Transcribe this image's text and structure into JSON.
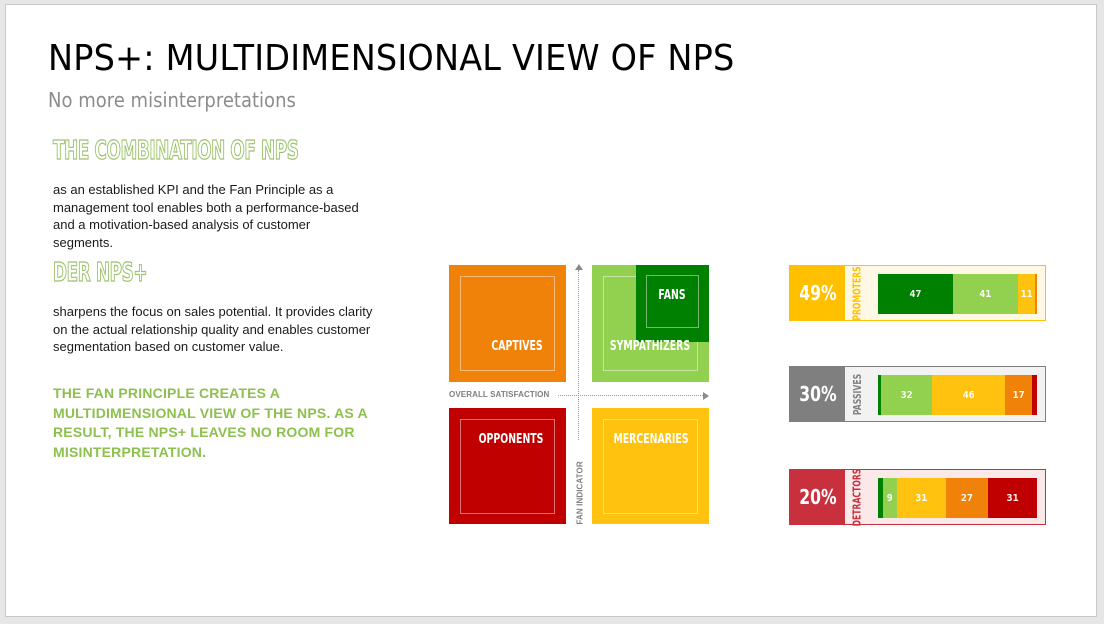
{
  "slide": {
    "title": "NPS+: MULTIDIMENSIONAL VIEW OF NPS",
    "subtitle": "No more misinterpretations"
  },
  "left_panel": {
    "section1": {
      "heading": "THE COMBINATION OF NPS",
      "body": "as an established KPI and the Fan Principle as a management tool enables both a performance-based and a motivation-based analysis of customer segments."
    },
    "section2": {
      "heading": "DER NPS+",
      "body": "sharpens the focus on sales potential. It provides clarity on the actual relationship quality and enables customer segmentation based on customer value."
    },
    "callout": "THE FAN PRINCIPLE CREATES A MULTIDIMENSIONAL VIEW OF THE NPS. AS A RESULT, THE NPS+ LEAVES NO ROOM FOR MISINTERPRETATION."
  },
  "matrix": {
    "x_axis_label": "OVERALL SATISFACTION",
    "y_axis_label": "FAN INDICATOR",
    "quadrants": {
      "captives": {
        "label": "CAPTIVES",
        "color": "#f0820a"
      },
      "sympathizers": {
        "label": "SYMPATHIZERS",
        "color": "#92d050"
      },
      "fans": {
        "label": "FANS",
        "color": "#008000"
      },
      "opponents": {
        "label": "OPPONENTS",
        "color": "#c00000"
      },
      "mercenaries": {
        "label": "MERCENARIES",
        "color": "#ffc20e"
      }
    }
  },
  "chart_data": {
    "type": "bar",
    "title": "NPS+ segment composition by NPS group",
    "orientation": "horizontal-stacked",
    "segment_colors": {
      "fans": "#008000",
      "sympathizers": "#92d050",
      "mercenaries": "#ffc20e",
      "captives": "#f0820a",
      "opponents": "#c00000"
    },
    "rows": [
      {
        "name": "PROMOTERS",
        "share": "49%",
        "accent": "#ffc000",
        "background": "#fff8e5",
        "segments": [
          {
            "key": "fans",
            "value": 47,
            "label": "47"
          },
          {
            "key": "sympathizers",
            "value": 41,
            "label": "41"
          },
          {
            "key": "mercenaries",
            "value": 11,
            "label": "11"
          },
          {
            "key": "captives",
            "value": 1,
            "label": ""
          }
        ]
      },
      {
        "name": "PASSIVES",
        "share": "30%",
        "accent": "#7f7f7f",
        "background": "#f2f2f2",
        "segments": [
          {
            "key": "fans",
            "value": 2,
            "label": ""
          },
          {
            "key": "sympathizers",
            "value": 32,
            "label": "32"
          },
          {
            "key": "mercenaries",
            "value": 46,
            "label": "46"
          },
          {
            "key": "captives",
            "value": 17,
            "label": "17"
          },
          {
            "key": "opponents",
            "value": 3,
            "label": ""
          }
        ]
      },
      {
        "name": "DETRACTORS",
        "share": "20%",
        "accent": "#c9303e",
        "background": "#fbe9ea",
        "segments": [
          {
            "key": "fans",
            "value": 3,
            "label": ""
          },
          {
            "key": "sympathizers",
            "value": 9,
            "label": "9"
          },
          {
            "key": "mercenaries",
            "value": 31,
            "label": "31"
          },
          {
            "key": "captives",
            "value": 27,
            "label": "27"
          },
          {
            "key": "opponents",
            "value": 31,
            "label": "31"
          }
        ]
      }
    ]
  }
}
